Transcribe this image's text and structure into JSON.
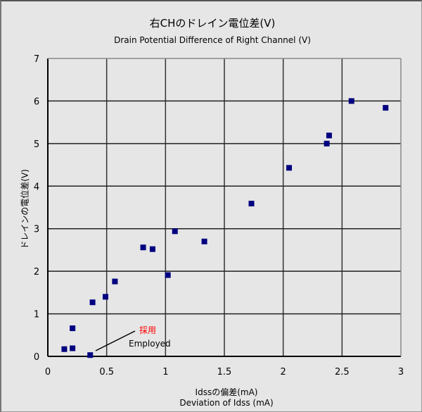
{
  "chart_data": {
    "type": "scatter",
    "title": "右CHのドレイン電位差(V)",
    "subtitle": "Drain Potential Difference of Right Channel (V)",
    "xlabel": "Idssの偏差(mA)",
    "xlabel_en": "Deviation of Idss (mA)",
    "ylabel": "ドレインの電位差(V)",
    "xlim": [
      0,
      3
    ],
    "ylim": [
      0,
      7
    ],
    "xticks": [
      "0",
      "0.5",
      "1",
      "1.5",
      "2",
      "2.5",
      "3"
    ],
    "yticks": [
      "0",
      "1",
      "2",
      "3",
      "4",
      "5",
      "6",
      "7"
    ],
    "grid": true,
    "marker_color": "#000080",
    "series": [
      {
        "name": "Right CH",
        "points": [
          {
            "x": 0.14,
            "y": 0.17
          },
          {
            "x": 0.21,
            "y": 0.19
          },
          {
            "x": 0.21,
            "y": 0.66
          },
          {
            "x": 0.36,
            "y": 0.03
          },
          {
            "x": 0.38,
            "y": 1.27
          },
          {
            "x": 0.49,
            "y": 1.4
          },
          {
            "x": 0.57,
            "y": 1.76
          },
          {
            "x": 0.81,
            "y": 2.56
          },
          {
            "x": 0.89,
            "y": 2.52
          },
          {
            "x": 1.02,
            "y": 1.91
          },
          {
            "x": 1.08,
            "y": 2.94
          },
          {
            "x": 1.33,
            "y": 2.7
          },
          {
            "x": 1.73,
            "y": 3.59
          },
          {
            "x": 2.05,
            "y": 4.43
          },
          {
            "x": 2.37,
            "y": 5.0
          },
          {
            "x": 2.39,
            "y": 5.19
          },
          {
            "x": 2.58,
            "y": 6.0
          },
          {
            "x": 2.87,
            "y": 5.84
          }
        ]
      }
    ],
    "annotations": [
      {
        "text": "採用",
        "text_en": "Employed",
        "color": "#ff0000",
        "points_to": {
          "x": 0.36,
          "y": 0.03
        }
      }
    ]
  },
  "labels": {
    "title": "右CHのドレイン電位差(V)",
    "subtitle": "Drain Potential Difference of Right Channel (V)",
    "xlabel": "Idssの偏差(mA)",
    "xlabel_en": "Deviation of Idss (mA)",
    "ylabel": "ドレインの電位差(V)",
    "annot_jp": "採用",
    "annot_en": "Employed"
  }
}
